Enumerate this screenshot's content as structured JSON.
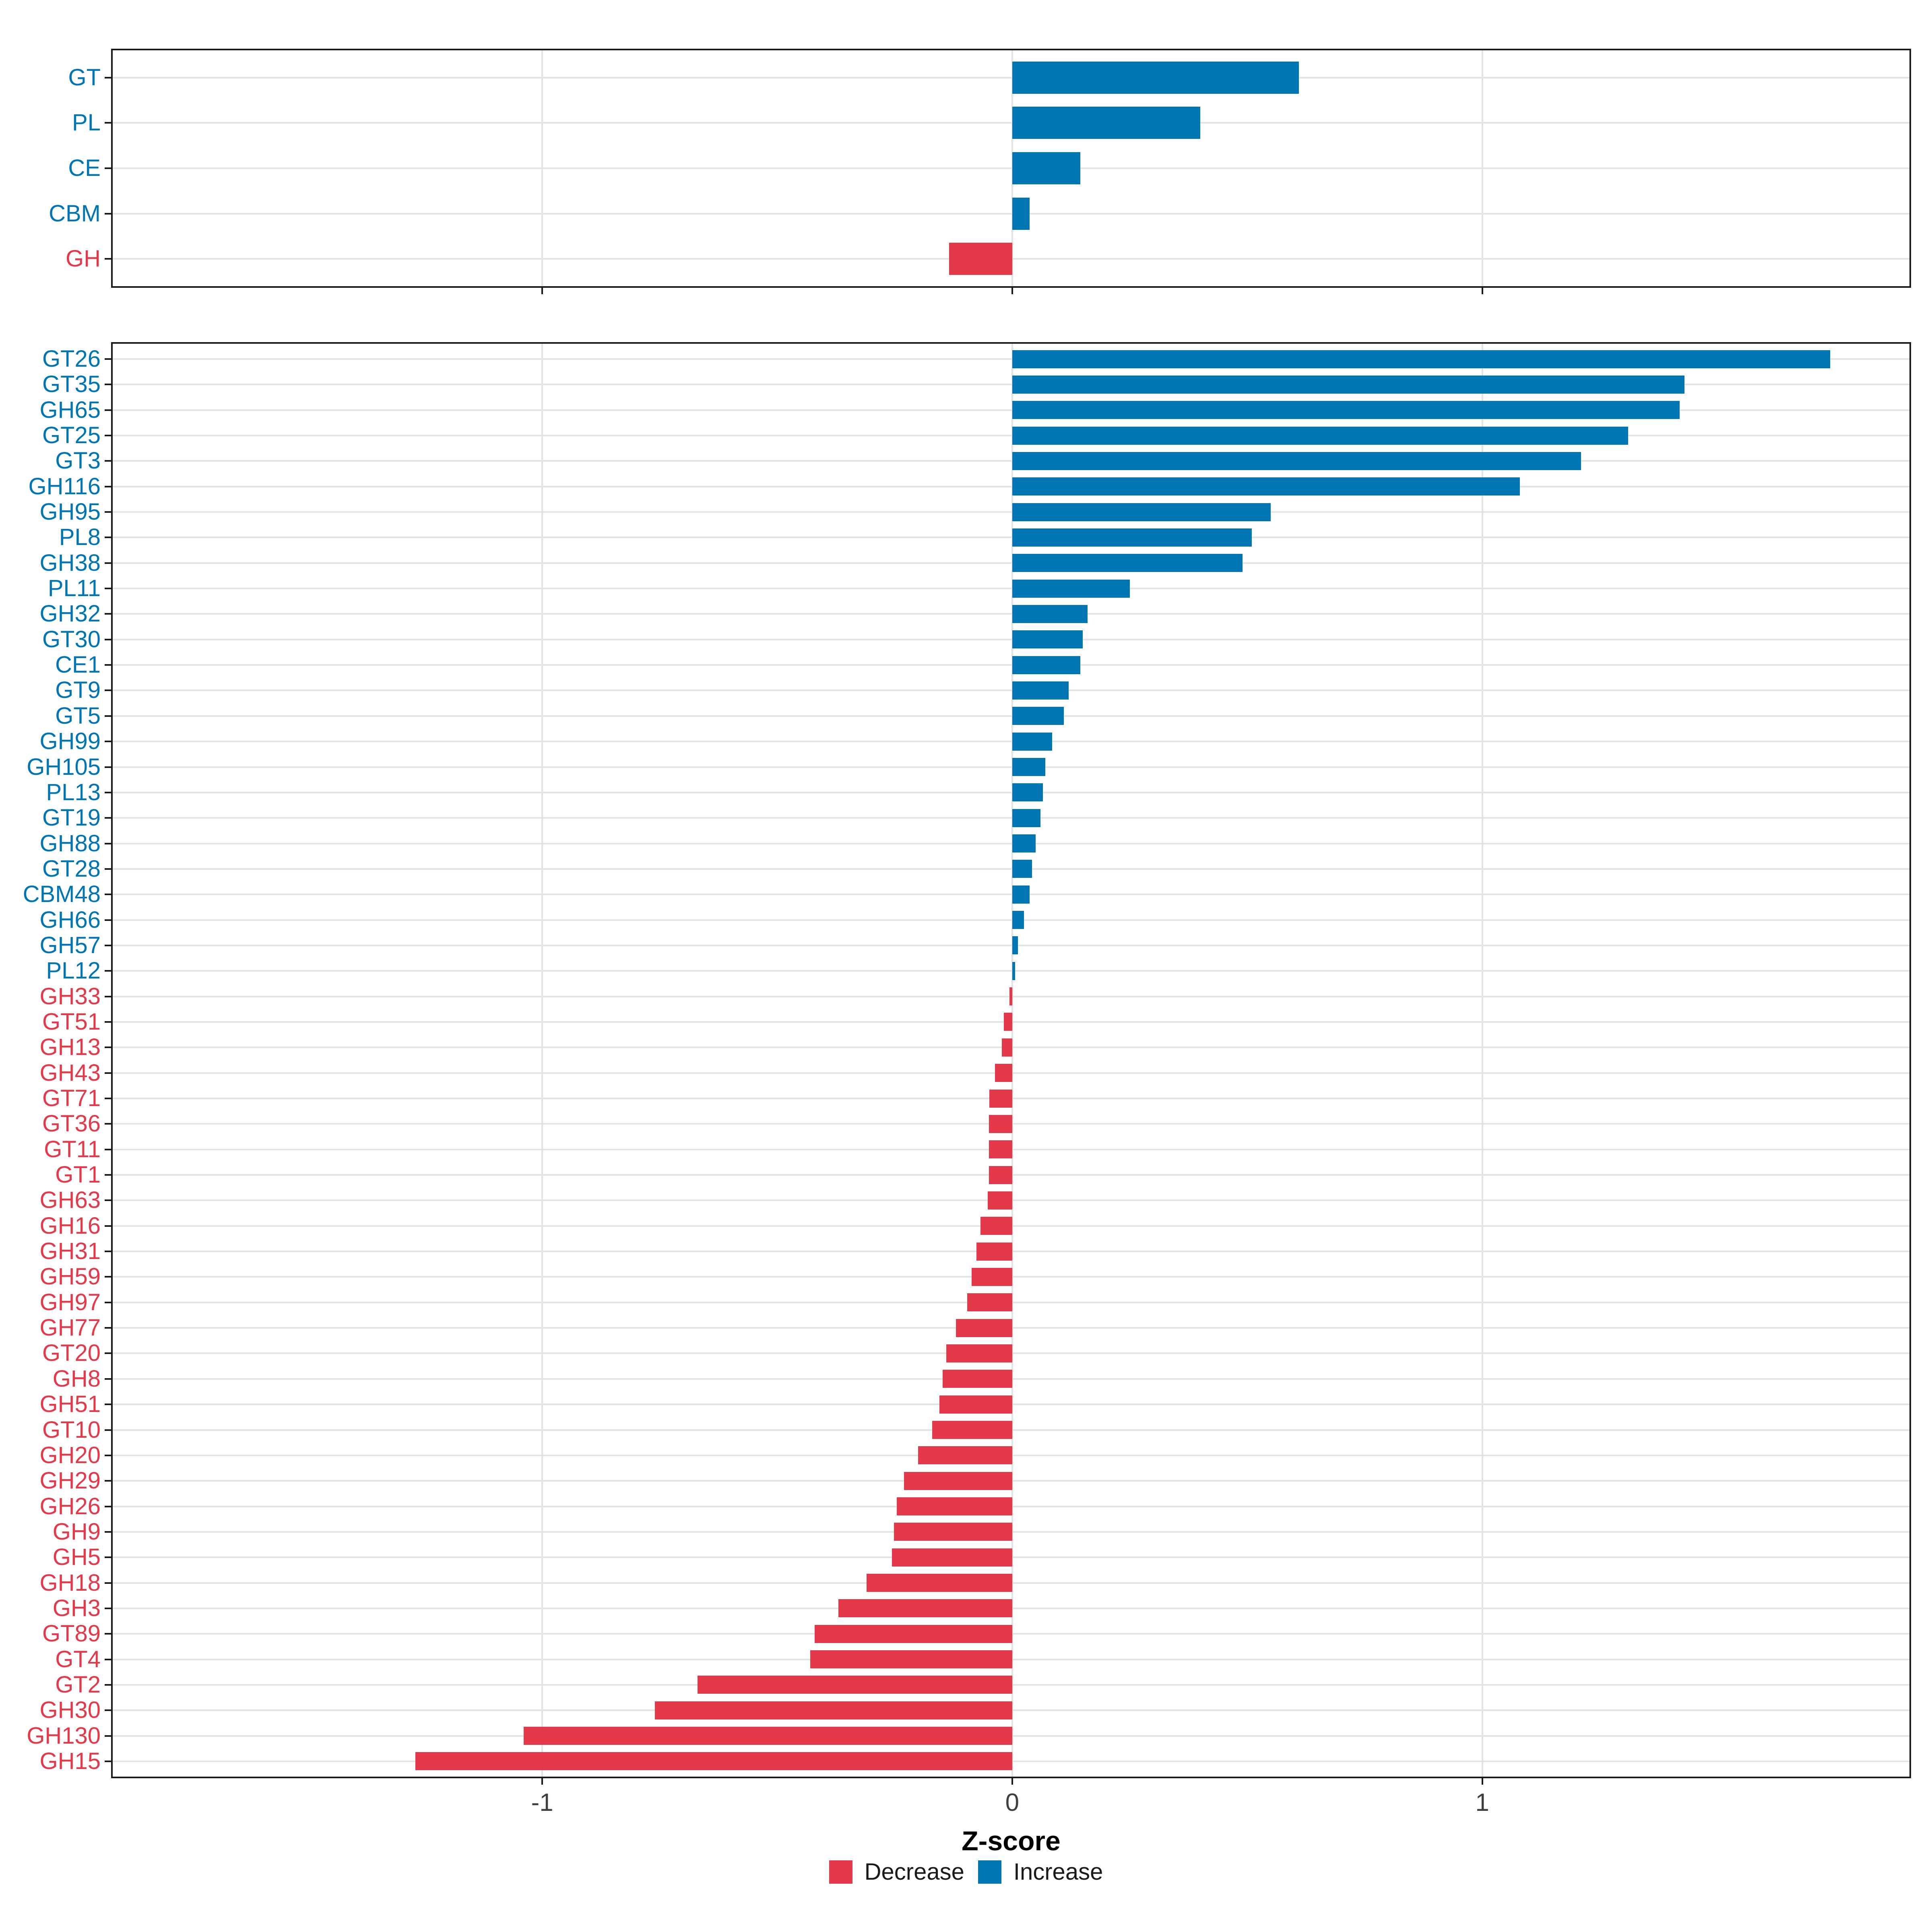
{
  "figure": {
    "background": "#ffffff",
    "description": "Two stacked horizontal bar panels of CAZyme Z-scores"
  },
  "colors": {
    "increase": "#0075b4",
    "decrease": "#e4394b",
    "grid": "#e3e3e3",
    "panel_border": "#1a1a1a",
    "axis_tick_text": "#404040",
    "axis_title_text": "#000000"
  },
  "axis": {
    "xlabel": "Z-score",
    "xlim": [
      -1.914,
      1.909
    ],
    "xticks": [
      {
        "value": -1,
        "label": "-1"
      },
      {
        "value": 0,
        "label": "0"
      },
      {
        "value": 1,
        "label": "1"
      }
    ]
  },
  "legend": {
    "items": [
      {
        "label": "Decrease",
        "color": "#e4394b"
      },
      {
        "label": "Increase",
        "color": "#0075b4"
      }
    ]
  },
  "chart_data": [
    {
      "id": "cazyme-class-summary",
      "type": "bar",
      "orientation": "horizontal",
      "xlabel": "Z-score",
      "xlim": [
        -1.914,
        1.909
      ],
      "xticks": [
        -1,
        0,
        1
      ],
      "grid": true,
      "color_rule": "negative=Decrease(red), positive=Increase(blue)",
      "categories": [
        "GT",
        "PL",
        "CE",
        "CBM",
        "GH"
      ],
      "values": [
        0.61,
        0.4,
        0.145,
        0.037,
        -0.134
      ]
    },
    {
      "id": "cazyme-family-detail",
      "type": "bar",
      "orientation": "horizontal",
      "xlabel": "Z-score",
      "xlim": [
        -1.914,
        1.909
      ],
      "xticks": [
        -1,
        0,
        1
      ],
      "grid": true,
      "color_rule": "negative=Decrease(red), positive=Increase(blue)",
      "categories": [
        "GT26",
        "GT35",
        "GH65",
        "GT25",
        "GT3",
        "GH116",
        "GH95",
        "PL8",
        "GH38",
        "PL11",
        "GH32",
        "GT30",
        "CE1",
        "GT9",
        "GT5",
        "GH99",
        "GH105",
        "PL13",
        "GT19",
        "GH88",
        "GT28",
        "CBM48",
        "GH66",
        "GH57",
        "PL12",
        "GH33",
        "GT51",
        "GH13",
        "GH43",
        "GT71",
        "GT36",
        "GT11",
        "GT1",
        "GH63",
        "GH16",
        "GH31",
        "GH59",
        "GH97",
        "GH77",
        "GT20",
        "GH8",
        "GH51",
        "GT10",
        "GH20",
        "GH29",
        "GH26",
        "GH9",
        "GH5",
        "GH18",
        "GH3",
        "GT89",
        "GT4",
        "GT2",
        "GH30",
        "GH130",
        "GH15"
      ],
      "values": [
        1.74,
        1.43,
        1.42,
        1.31,
        1.21,
        1.08,
        0.55,
        0.51,
        0.49,
        0.25,
        0.16,
        0.15,
        0.145,
        0.12,
        0.11,
        0.085,
        0.07,
        0.065,
        0.06,
        0.05,
        0.042,
        0.037,
        0.025,
        0.012,
        0.006,
        -0.006,
        -0.018,
        -0.022,
        -0.037,
        -0.049,
        -0.05,
        -0.05,
        -0.05,
        -0.052,
        -0.068,
        -0.076,
        -0.086,
        -0.096,
        -0.12,
        -0.14,
        -0.148,
        -0.155,
        -0.17,
        -0.2,
        -0.23,
        -0.246,
        -0.252,
        -0.256,
        -0.31,
        -0.37,
        -0.42,
        -0.43,
        -0.67,
        -0.76,
        -1.04,
        -1.27
      ]
    }
  ]
}
